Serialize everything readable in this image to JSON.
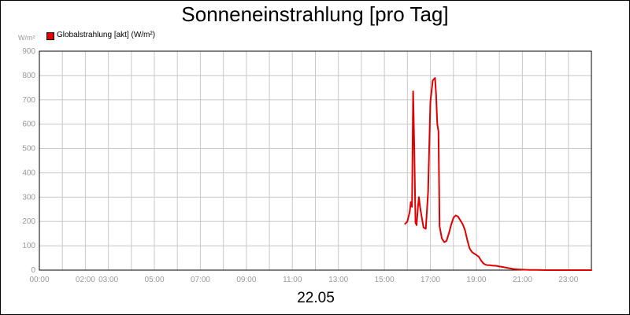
{
  "chart_data": {
    "type": "line",
    "title": "Sonneneinstrahlung [pro Tag]",
    "ylabel": "W/m²",
    "xlabel": "22.05",
    "ylim": [
      0,
      900
    ],
    "y_ticks": [
      "0",
      "100",
      "200",
      "300",
      "400",
      "500",
      "600",
      "700",
      "800",
      "900"
    ],
    "x_tick_labels": [
      "00:00",
      "02:00",
      "03:00",
      "05:00",
      "07:00",
      "09:00",
      "11:00",
      "13:00",
      "15:00",
      "17:00",
      "19:00",
      "21:00",
      "23:00"
    ],
    "x_tick_hours": [
      0,
      2,
      3,
      5,
      7,
      9,
      11,
      13,
      15,
      17,
      19,
      21,
      23
    ],
    "grid": true,
    "legend_position": "top-left",
    "series": [
      {
        "name": "Globalstrahlung [akt] (W/m²)",
        "color": "#e00000",
        "x": [
          15.9,
          16.0,
          16.1,
          16.15,
          16.2,
          16.25,
          16.3,
          16.35,
          16.4,
          16.45,
          16.5,
          16.55,
          16.6,
          16.7,
          16.8,
          16.9,
          17.0,
          17.1,
          17.2,
          17.25,
          17.3,
          17.35,
          17.4,
          17.5,
          17.6,
          17.7,
          17.8,
          17.9,
          18.0,
          18.1,
          18.2,
          18.3,
          18.4,
          18.5,
          18.6,
          18.7,
          18.8,
          18.9,
          19.0,
          19.1,
          19.2,
          19.3,
          19.4,
          19.5,
          19.6,
          19.7,
          19.8,
          19.9,
          20.0,
          20.2,
          20.4,
          20.6,
          20.8,
          21.0,
          21.3,
          21.6,
          22.0,
          22.5,
          23.0,
          23.5,
          24.0
        ],
        "values": [
          190,
          200,
          240,
          280,
          260,
          735,
          500,
          195,
          185,
          250,
          300,
          260,
          230,
          175,
          170,
          320,
          690,
          780,
          790,
          720,
          600,
          570,
          180,
          130,
          115,
          120,
          150,
          185,
          215,
          225,
          220,
          205,
          190,
          165,
          125,
          90,
          75,
          68,
          62,
          55,
          40,
          28,
          22,
          20,
          20,
          18,
          18,
          17,
          15,
          12,
          8,
          5,
          3,
          2,
          1,
          1,
          0,
          0,
          0,
          0,
          0
        ]
      }
    ]
  }
}
